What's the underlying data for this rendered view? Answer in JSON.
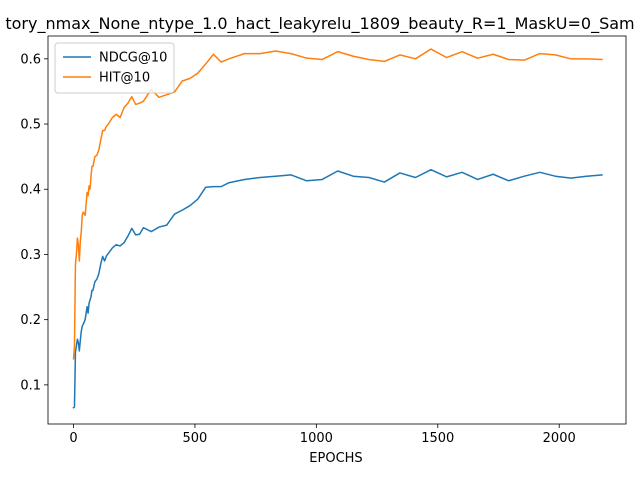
{
  "chart_data": {
    "type": "line",
    "title": "tory_nmax_None_ntype_1.0_hact_leakyrelu_1809_beauty_R=1_MaskU=0_Sam",
    "xlabel": "EPOCHS",
    "ylabel": "",
    "xlim": [
      -105,
      2275
    ],
    "ylim": [
      0.04,
      0.635
    ],
    "xticks": [
      0,
      500,
      1000,
      1500,
      2000
    ],
    "xtick_labels": [
      "0",
      "500",
      "1000",
      "1500",
      "2000"
    ],
    "yticks": [
      0.1,
      0.2,
      0.3,
      0.4,
      0.5,
      0.6
    ],
    "ytick_labels": [
      "0.1",
      "0.2",
      "0.3",
      "0.4",
      "0.5",
      "0.6"
    ],
    "grid": false,
    "legend": "top-left",
    "series": [
      {
        "name": "NDCG@10",
        "color": "#1f77b4",
        "x": [
          0,
          4,
          8,
          12,
          16,
          20,
          24,
          28,
          32,
          36,
          40,
          48,
          56,
          60,
          64,
          68,
          72,
          76,
          80,
          88,
          96,
          104,
          112,
          120,
          128,
          136,
          144,
          152,
          160,
          176,
          192,
          208,
          224,
          240,
          256,
          272,
          288,
          320,
          352,
          384,
          416,
          448,
          480,
          512,
          544,
          576,
          608,
          640,
          704,
          768,
          832,
          896,
          960,
          1024,
          1088,
          1152,
          1216,
          1280,
          1344,
          1408,
          1472,
          1536,
          1600,
          1664,
          1728,
          1792,
          1856,
          1920,
          1984,
          2048,
          2112,
          2176
        ],
        "y": [
          0.065,
          0.066,
          0.15,
          0.16,
          0.17,
          0.165,
          0.152,
          0.168,
          0.182,
          0.19,
          0.193,
          0.2,
          0.22,
          0.21,
          0.225,
          0.23,
          0.235,
          0.245,
          0.245,
          0.258,
          0.262,
          0.27,
          0.285,
          0.297,
          0.29,
          0.298,
          0.302,
          0.306,
          0.31,
          0.315,
          0.313,
          0.318,
          0.328,
          0.34,
          0.33,
          0.331,
          0.341,
          0.335,
          0.342,
          0.345,
          0.362,
          0.368,
          0.375,
          0.385,
          0.403,
          0.404,
          0.404,
          0.41,
          0.415,
          0.418,
          0.42,
          0.422,
          0.413,
          0.415,
          0.428,
          0.42,
          0.418,
          0.411,
          0.425,
          0.418,
          0.43,
          0.419,
          0.426,
          0.415,
          0.423,
          0.413,
          0.42,
          0.426,
          0.42,
          0.417,
          0.42,
          0.422
        ]
      },
      {
        "name": "HIT@10",
        "color": "#ff7f0e",
        "x": [
          0,
          4,
          8,
          12,
          16,
          20,
          24,
          28,
          32,
          36,
          40,
          48,
          56,
          60,
          64,
          68,
          72,
          76,
          80,
          88,
          96,
          104,
          112,
          120,
          128,
          136,
          144,
          152,
          160,
          176,
          192,
          208,
          224,
          240,
          256,
          272,
          288,
          320,
          352,
          384,
          416,
          448,
          480,
          512,
          544,
          576,
          608,
          640,
          704,
          768,
          832,
          896,
          960,
          1024,
          1088,
          1152,
          1216,
          1280,
          1344,
          1408,
          1472,
          1536,
          1600,
          1664,
          1728,
          1792,
          1856,
          1920,
          1984,
          2048,
          2112,
          2176
        ],
        "y": [
          0.14,
          0.16,
          0.285,
          0.3,
          0.325,
          0.315,
          0.29,
          0.32,
          0.335,
          0.36,
          0.365,
          0.36,
          0.395,
          0.39,
          0.405,
          0.4,
          0.42,
          0.435,
          0.435,
          0.45,
          0.452,
          0.46,
          0.475,
          0.49,
          0.49,
          0.497,
          0.5,
          0.505,
          0.51,
          0.515,
          0.51,
          0.525,
          0.532,
          0.542,
          0.53,
          0.532,
          0.535,
          0.553,
          0.541,
          0.545,
          0.549,
          0.566,
          0.57,
          0.578,
          0.592,
          0.607,
          0.595,
          0.6,
          0.608,
          0.608,
          0.612,
          0.608,
          0.601,
          0.599,
          0.611,
          0.604,
          0.599,
          0.596,
          0.606,
          0.6,
          0.615,
          0.602,
          0.611,
          0.601,
          0.607,
          0.599,
          0.598,
          0.608,
          0.606,
          0.6,
          0.6,
          0.599
        ]
      }
    ]
  }
}
